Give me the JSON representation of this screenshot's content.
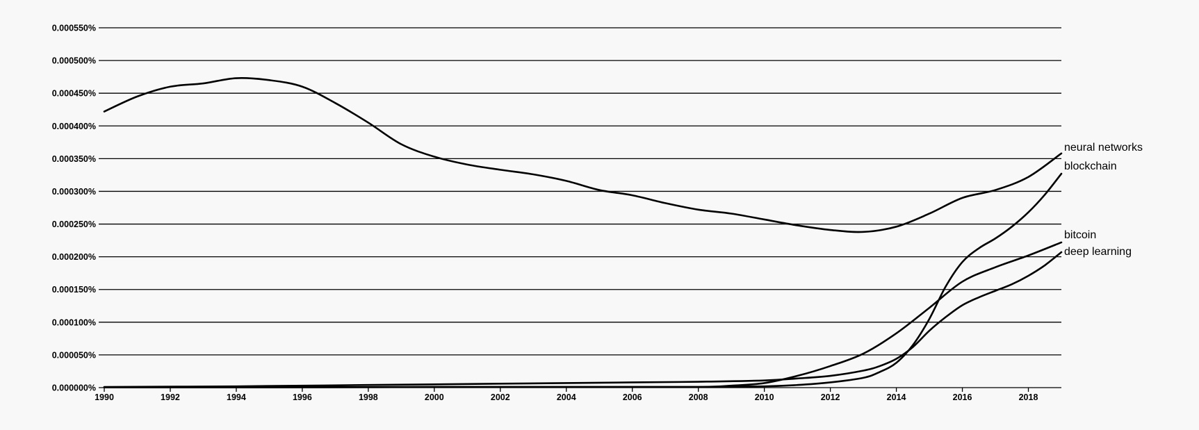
{
  "chart_data": {
    "type": "line",
    "title": "",
    "xlabel": "",
    "ylabel": "",
    "xlim": [
      1990,
      2019
    ],
    "ylim": [
      0,
      0.00055
    ],
    "x_ticks": [
      1990,
      1992,
      1994,
      1996,
      1998,
      2000,
      2002,
      2004,
      2006,
      2008,
      2010,
      2012,
      2014,
      2016,
      2018
    ],
    "y_ticks": [
      0,
      5e-05,
      0.0001,
      0.00015,
      0.0002,
      0.00025,
      0.0003,
      0.00035,
      0.0004,
      0.00045,
      0.0005,
      0.00055
    ],
    "y_tick_labels": [
      "0.000000%",
      "0.000050%",
      "0.000100%",
      "0.000150%",
      "0.000200%",
      "0.000250%",
      "0.000300%",
      "0.000350%",
      "0.000400%",
      "0.000450%",
      "0.000500%",
      "0.000550%"
    ],
    "grid": true,
    "legend": "none",
    "series": [
      {
        "name": "neural networks",
        "x": [
          1990,
          1991,
          1992,
          1993,
          1994,
          1995,
          1996,
          1997,
          1998,
          1999,
          2000,
          2001,
          2002,
          2003,
          2004,
          2005,
          2006,
          2007,
          2008,
          2009,
          2010,
          2011,
          2012,
          2013,
          2014,
          2015,
          2016,
          2017,
          2018,
          2019
        ],
        "values": [
          0.000422,
          0.000445,
          0.00046,
          0.000465,
          0.000473,
          0.00047,
          0.00046,
          0.000435,
          0.000405,
          0.000372,
          0.000353,
          0.000341,
          0.000333,
          0.000326,
          0.000316,
          0.000302,
          0.000294,
          0.000282,
          0.000272,
          0.000266,
          0.000257,
          0.000248,
          0.000241,
          0.000238,
          0.000246,
          0.000266,
          0.00029,
          0.000302,
          0.000322,
          0.000358
        ]
      },
      {
        "name": "blockchain",
        "x": [
          1990,
          1995,
          2000,
          2005,
          2008,
          2010,
          2011,
          2012,
          2013,
          2013.5,
          2014,
          2014.5,
          2015,
          2015.5,
          2016,
          2016.5,
          2017,
          2017.5,
          2018,
          2018.5,
          2019
        ],
        "values": [
          5e-07,
          5e-07,
          1e-06,
          1e-06,
          1e-06,
          2e-06,
          4e-06,
          8e-06,
          1.5e-05,
          2.4e-05,
          3.8e-05,
          6.5e-05,
          0.000105,
          0.000155,
          0.000192,
          0.000213,
          0.000228,
          0.000246,
          0.000268,
          0.000295,
          0.000327
        ]
      },
      {
        "name": "bitcoin",
        "x": [
          1990,
          1995,
          2000,
          2005,
          2008,
          2009,
          2010,
          2011,
          2012,
          2013,
          2014,
          2015,
          2016,
          2017,
          2018,
          2019
        ],
        "values": [
          5e-07,
          5e-07,
          1e-06,
          1e-06,
          1e-06,
          3e-06,
          7e-06,
          1.8e-05,
          3.3e-05,
          5.2e-05,
          8.3e-05,
          0.000122,
          0.000162,
          0.000184,
          0.000202,
          0.000222
        ]
      },
      {
        "name": "deep learning",
        "x": [
          1990,
          1994,
          1998,
          2002,
          2006,
          2008,
          2010,
          2011,
          2012,
          2013,
          2013.5,
          2014,
          2014.5,
          2015,
          2015.5,
          2016,
          2016.5,
          2017,
          2017.5,
          2018,
          2018.5,
          2019
        ],
        "values": [
          1e-06,
          2e-06,
          4e-06,
          6e-06,
          8e-06,
          9e-06,
          1.1e-05,
          1.4e-05,
          1.8e-05,
          2.6e-05,
          3.3e-05,
          4.4e-05,
          6.2e-05,
          8.7e-05,
          0.000108,
          0.000126,
          0.000138,
          0.000148,
          0.000158,
          0.000171,
          0.000187,
          0.000207
        ]
      }
    ]
  }
}
